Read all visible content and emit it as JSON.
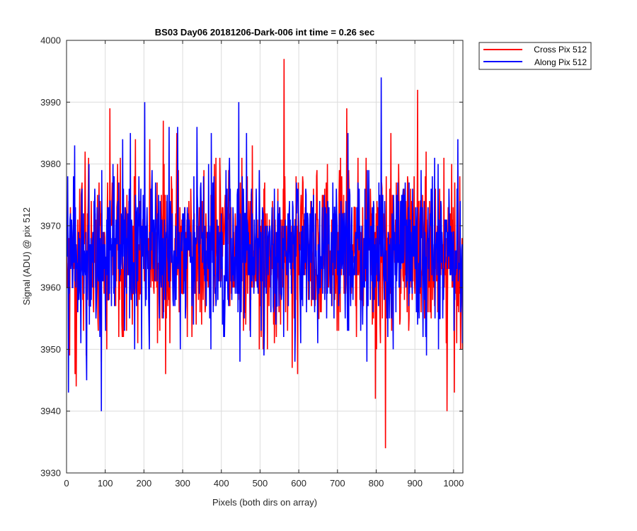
{
  "chart_data": {
    "type": "line",
    "title": "BS03 Day06 20181206-Dark-006 int time = 0.26 sec",
    "xlabel": "Pixels (both dirs on array)",
    "ylabel": "Signal (ADU) @ pix 512",
    "xlim": [
      0,
      1024
    ],
    "ylim": [
      3930,
      4000
    ],
    "xticks": [
      0,
      100,
      200,
      300,
      400,
      500,
      600,
      700,
      800,
      900,
      1000
    ],
    "yticks": [
      3930,
      3940,
      3950,
      3960,
      3970,
      3980,
      3990,
      4000
    ],
    "grid": true,
    "legend_position": "outside top-right",
    "series": [
      {
        "name": "Cross Pix 512",
        "color": "#ff0000",
        "mean": 3966,
        "x": [
          0,
          8,
          22,
          25,
          48,
          51,
          90,
          112,
          178,
          215,
          250,
          256,
          285,
          480,
          562,
          583,
          597,
          724,
          753,
          798,
          824,
          838,
          907,
          929,
          983,
          1002,
          1024
        ],
        "y": [
          3966,
          3949,
          3946,
          3944,
          3982,
          3949,
          3948,
          3989,
          3984,
          3984,
          3987,
          3946,
          3985,
          3983,
          3997,
          3947,
          3946,
          3989,
          3981,
          3942,
          3934,
          3985,
          3992,
          3982,
          3940,
          3943,
          3966
        ]
      },
      {
        "name": "Along Pix 512",
        "color": "#0000ff",
        "mean": 3966,
        "x": [
          0,
          5,
          21,
          52,
          90,
          145,
          165,
          202,
          265,
          287,
          337,
          374,
          445,
          448,
          465,
          510,
          561,
          590,
          727,
          776,
          813,
          830,
          930,
          1011,
          1024
        ],
        "y": [
          3966,
          3943,
          3983,
          3945,
          3940,
          3984,
          3985,
          3990,
          3986,
          3986,
          3986,
          3985,
          3990,
          3948,
          3985,
          3949,
          3952,
          3948,
          3985,
          3948,
          3994,
          3952,
          3949,
          3984,
          3966
        ]
      }
    ]
  }
}
